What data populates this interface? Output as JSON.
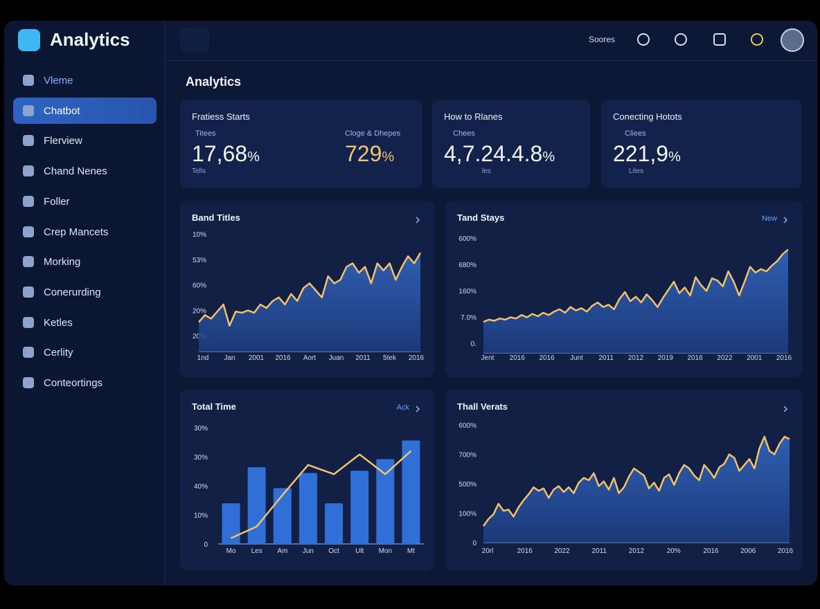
{
  "app": {
    "title": "Analytics"
  },
  "header": {
    "search_label": "Soores"
  },
  "sidebar": {
    "active": 1,
    "items": [
      "Vleme",
      "Chatbot",
      "Flerview",
      "Chand Nenes",
      "Foller",
      "Crep Mancets",
      "Morking",
      "Conerurding",
      "Ketles",
      "Cerlity",
      "Conteortings"
    ]
  },
  "page": {
    "title": "Analytics"
  },
  "cards": [
    {
      "title": "Fratiess Starts",
      "sub": "Titees",
      "value": "17,68",
      "unit": "%",
      "foot": "Tells",
      "second": {
        "sub": "Cloge & Dhepes",
        "value": "729",
        "unit": "%"
      }
    },
    {
      "title": "How to Rlanes",
      "sub": "Chees",
      "value": "4,7.24.4.8",
      "unit": "%",
      "foot": "les"
    },
    {
      "title": "Conecting Hotots",
      "sub": "Cliees",
      "value": "221,9",
      "unit": "%",
      "foot": "Lites"
    }
  ],
  "charts": [
    {
      "type": "area",
      "title": "Band Titles",
      "color": "#f3c26a",
      "ylim": [
        0,
        100
      ],
      "y_labels": [
        "10%",
        "53%",
        "60%",
        "20%",
        "20%"
      ],
      "x_labels": [
        "1nd",
        "Jan",
        "2001",
        "2016",
        "Aort",
        "Juan",
        "2011",
        "5tek",
        "2016"
      ],
      "values": [
        25,
        31,
        28,
        34,
        40,
        22,
        34,
        33,
        35,
        33,
        40,
        37,
        43,
        46,
        40,
        49,
        43,
        54,
        58,
        52,
        46,
        64,
        58,
        61,
        72,
        75,
        67,
        72,
        58,
        75,
        69,
        75,
        61,
        72,
        81,
        75,
        84
      ]
    },
    {
      "type": "area",
      "title": "Tand Stays",
      "link": "New",
      "color": "#f3c26a",
      "ylim": [
        0,
        100
      ],
      "y_labels": [
        "600%",
        "680%",
        "160%",
        "7.0%",
        "0."
      ],
      "x_labels": [
        "Jent",
        "2016",
        "2016",
        "Junt",
        "2011",
        "2012",
        "2019",
        "2016",
        "2022",
        "2001",
        "2016"
      ],
      "values": [
        27,
        29,
        28,
        30,
        29,
        31,
        30,
        33,
        31,
        34,
        32,
        35,
        33,
        36,
        38,
        35,
        40,
        37,
        39,
        36,
        41,
        44,
        40,
        42,
        38,
        47,
        53,
        45,
        49,
        44,
        51,
        46,
        40,
        48,
        55,
        62,
        52,
        57,
        50,
        66,
        59,
        54,
        65,
        63,
        58,
        71,
        62,
        50,
        62,
        75,
        70,
        73,
        71,
        76,
        80,
        86,
        90
      ]
    },
    {
      "type": "bar-line",
      "title": "Total Time",
      "link": "Ack",
      "ylim": [
        0,
        100
      ],
      "y_labels": [
        "30%",
        "30%",
        "40%",
        "10%",
        "0"
      ],
      "x_labels": [
        "Mo",
        "Les",
        "Am",
        "Jun",
        "Oct",
        "Ult",
        "Mon",
        "Mt"
      ],
      "series": [
        {
          "kind": "bar",
          "color": "#2f6fd6",
          "values": [
            35,
            66,
            48,
            61,
            35,
            63,
            73,
            89
          ]
        },
        {
          "kind": "line",
          "color": "#f3c26a",
          "values": [
            5,
            15,
            42,
            68,
            60,
            77,
            60,
            80
          ]
        }
      ]
    },
    {
      "type": "area",
      "title": "Thall Verats",
      "color": "#f3c26a",
      "ylim": [
        0,
        100
      ],
      "y_labels": [
        "600%",
        "700%",
        "500%",
        "100%",
        "0"
      ],
      "x_labels": [
        "20rl",
        "2016",
        "2022",
        "2011",
        "2012",
        "20%",
        "2016",
        "2006",
        "2016"
      ],
      "values": [
        14,
        20,
        24,
        33,
        27,
        28,
        22,
        30,
        36,
        41,
        47,
        44,
        46,
        38,
        45,
        48,
        43,
        47,
        42,
        51,
        55,
        53,
        59,
        48,
        52,
        45,
        55,
        42,
        47,
        56,
        63,
        60,
        57,
        46,
        51,
        44,
        55,
        58,
        49,
        59,
        66,
        63,
        57,
        53,
        66,
        61,
        55,
        64,
        67,
        75,
        72,
        61,
        66,
        71,
        63,
        80,
        90,
        78,
        75,
        84,
        90,
        88
      ]
    }
  ]
}
